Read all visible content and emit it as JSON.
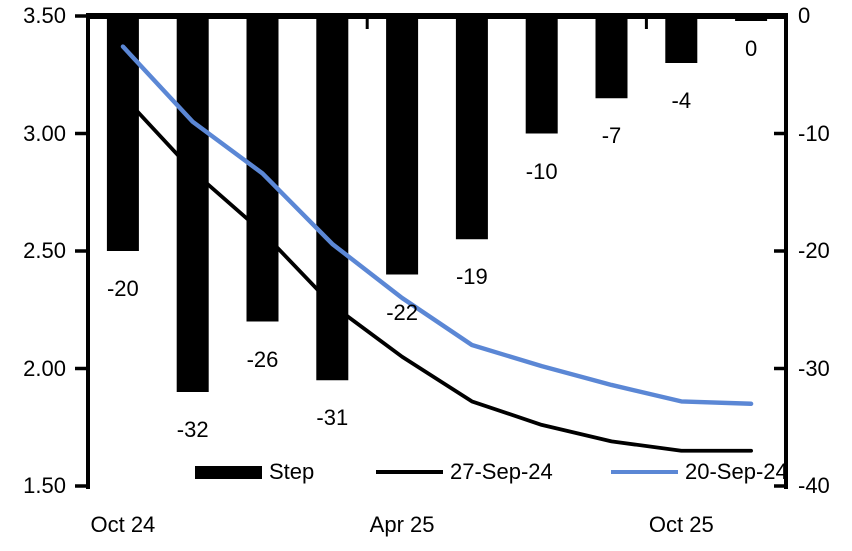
{
  "chart_data": {
    "type": "bar+line combo",
    "title": "",
    "plot": {
      "background": "#ffffff",
      "grid": "off",
      "bars_hang_from_top": true
    },
    "bars": {
      "name": "Step",
      "axis": "right",
      "color": "#000000",
      "values": [
        -20,
        -32,
        -26,
        -31,
        -22,
        -19,
        -10,
        -7,
        -4,
        0
      ],
      "data_labels": [
        "-20",
        "-32",
        "-26",
        "-31",
        "-22",
        "-19",
        "-10",
        "-7",
        "-4",
        "0"
      ]
    },
    "series": [
      {
        "name": "27-Sep-24",
        "axis": "left",
        "color": "#000000",
        "values": [
          3.16,
          2.84,
          2.58,
          2.27,
          2.05,
          1.86,
          1.76,
          1.69,
          1.65,
          1.65
        ]
      },
      {
        "name": "20-Sep-24",
        "axis": "left",
        "color": "#5B87D5",
        "values": [
          3.37,
          3.05,
          2.83,
          2.53,
          2.3,
          2.1,
          2.01,
          1.93,
          1.86,
          1.85
        ]
      }
    ],
    "left_axis": {
      "min": 1.5,
      "max": 3.5,
      "ticks": [
        "3.50",
        "3.00",
        "2.50",
        "2.00",
        "1.50"
      ]
    },
    "right_axis": {
      "min": -40,
      "max": 0,
      "ticks": [
        "0",
        "-10",
        "-20",
        "-30",
        "-40"
      ]
    },
    "x_axis": {
      "n_categories": 10,
      "tick_labels": [
        {
          "index": 0,
          "label": "Oct 24"
        },
        {
          "index": 4,
          "label": "Apr 25"
        },
        {
          "index": 8,
          "label": "Oct 25"
        }
      ],
      "boundary_ticks": [
        4,
        8
      ]
    },
    "legend": [
      {
        "label": "Step",
        "type": "bar",
        "color": "#000000"
      },
      {
        "label": "27-Sep-24",
        "type": "line",
        "color": "#000000"
      },
      {
        "label": "20-Sep-24",
        "type": "line",
        "color": "#5B87D5"
      }
    ]
  }
}
